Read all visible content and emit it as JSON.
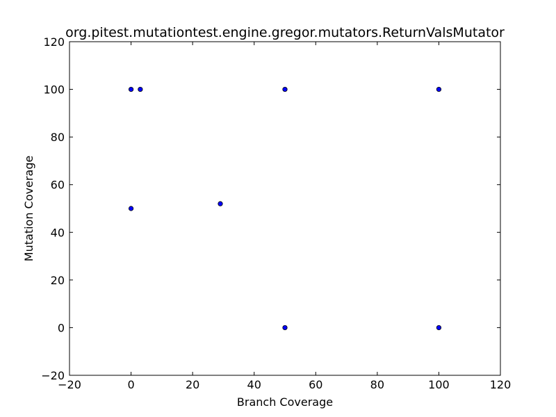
{
  "chart_data": {
    "type": "scatter",
    "title": "org.pitest.mutationtest.engine.gregor.mutators.ReturnValsMutator",
    "xlabel": "Branch Coverage",
    "ylabel": "Mutation Coverage",
    "xlim": [
      -20,
      120
    ],
    "ylim": [
      -20,
      120
    ],
    "xticks": [
      -20,
      0,
      20,
      40,
      60,
      80,
      100,
      120
    ],
    "yticks": [
      -20,
      0,
      20,
      40,
      60,
      80,
      100,
      120
    ],
    "xtick_labels": [
      "−20",
      "0",
      "20",
      "40",
      "60",
      "80",
      "100",
      "120"
    ],
    "ytick_labels": [
      "−20",
      "0",
      "20",
      "40",
      "60",
      "80",
      "100",
      "120"
    ],
    "grid": false,
    "legend": "none",
    "marker_color": "#0000ff",
    "points": [
      {
        "x": 0,
        "y": 100
      },
      {
        "x": 3,
        "y": 100
      },
      {
        "x": 50,
        "y": 100
      },
      {
        "x": 100,
        "y": 100
      },
      {
        "x": 0,
        "y": 50
      },
      {
        "x": 29,
        "y": 52
      },
      {
        "x": 50,
        "y": 0
      },
      {
        "x": 100,
        "y": 0
      }
    ]
  }
}
